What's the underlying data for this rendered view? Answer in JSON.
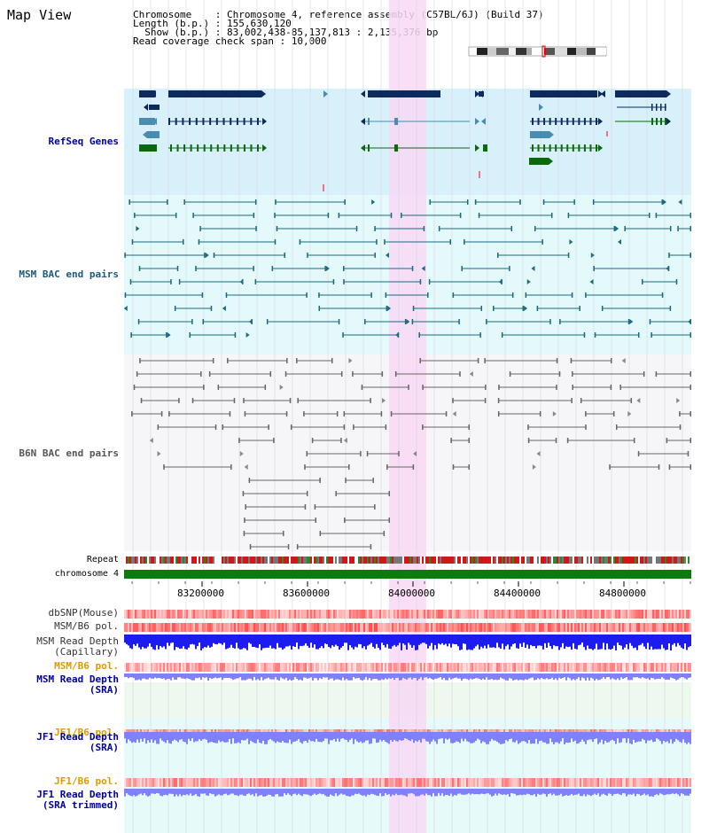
{
  "title": "Map View",
  "info": {
    "chromosome": "Chromosome    : Chromosome 4, reference assembly (C57BL/6J) (Build 37)",
    "length": "Length (b.p.) : 155,630,120",
    "show": "  Show (b.p.) : 83,002,438-85,137,813 : 2,135,376 bp",
    "coverage": "Read coverage check span : 10,000"
  },
  "tracks": {
    "refseq": "RefSeq Genes",
    "msm_bac": "MSM BAC end pairs",
    "b6n_bac": "B6N BAC end pairs",
    "repeat": "Repeat",
    "chromosome": "chromosome 4",
    "dbsnp": "dbSNP(Mouse)",
    "msm_b6_pol": "MSM/B6 pol.",
    "msm_depth_cap_1": "MSM Read Depth",
    "msm_depth_cap_2": "(Capillary)",
    "msm_b6_pol_sra": "MSM/B6 pol.",
    "msm_depth_sra_1": "MSM Read Depth",
    "msm_depth_sra_2": "(SRA)",
    "jf1_b6_pol": "JF1/B6 pol.",
    "jf1_depth_1": "JF1 Read Depth",
    "jf1_depth_2": "(SRA)",
    "jf1_b6_pol_trim": "JF1/B6 pol.",
    "jf1_depth_trim_1": "JF1 Read Depth",
    "jf1_depth_trim_2": "(SRA trimmed)"
  },
  "axis": {
    "ticks": [
      "83200000",
      "83600000",
      "84000000",
      "84400000",
      "84800000"
    ]
  },
  "colors": {
    "refseq_bg": "#d8f0fa",
    "msm_bg": "#e4fafa",
    "b6n_bg": "#f6f6f8",
    "highlight": "#f8d8f4",
    "gene_dark": "#0c2a5e",
    "gene_mid": "#4a8cb0",
    "gene_green": "#0a6a0a",
    "msm_line": "#1a6a80",
    "b6n_line": "#666666",
    "chrom_green": "#0c7a0c",
    "depth_blue": "#1c1cf0",
    "depth_light": "#8080f8",
    "pol_label": "#e09a00",
    "label_blue": "#0000a0"
  }
}
